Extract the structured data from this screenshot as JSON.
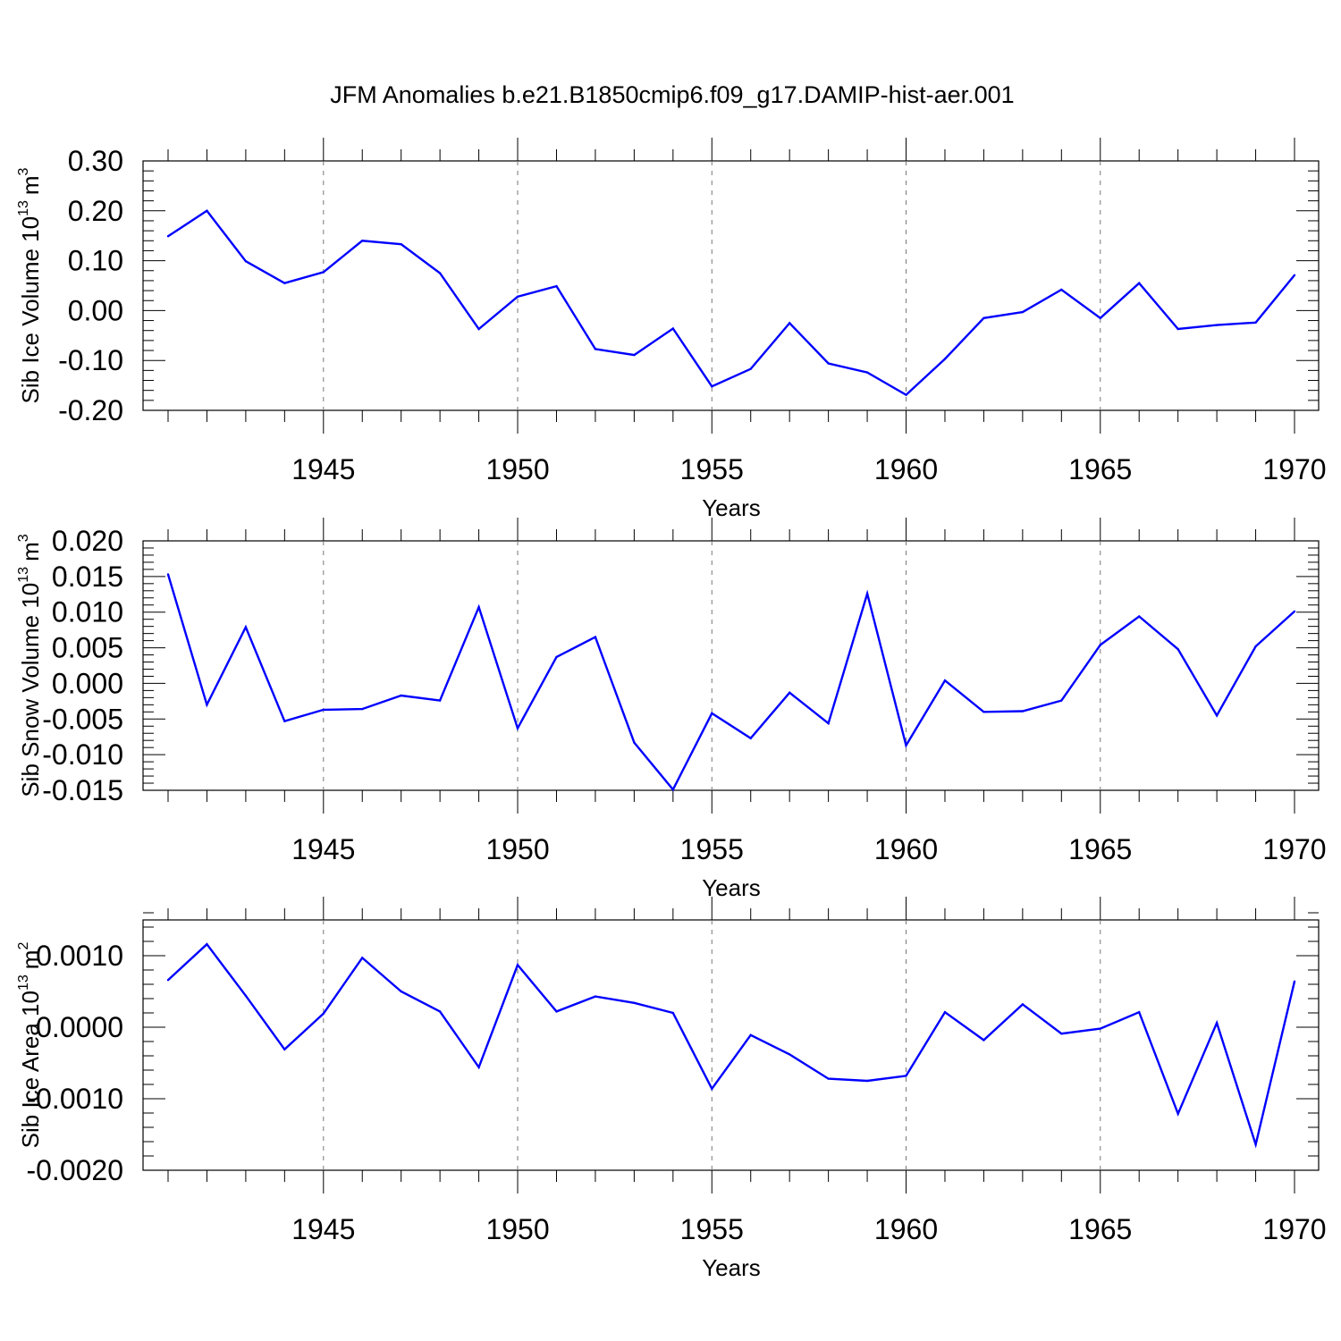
{
  "title": "JFM Anomalies b.e21.B1850cmip6.f09_g17.DAMIP-hist-aer.001",
  "series_color": "#0000ff",
  "chart_data": [
    {
      "type": "line",
      "ylabel": "Sib Ice Volume 10",
      "ylabel_sup": "13",
      "ylabel_unit": "m",
      "ylabel_unit_sup": "3",
      "xlabel": "Years",
      "xlim": [
        1941,
        1970
      ],
      "ylim": [
        -0.2,
        0.3
      ],
      "yticks": [
        -0.2,
        -0.1,
        0.0,
        0.1,
        0.2,
        0.3
      ],
      "ytick_labels": [
        "-0.20",
        "-0.10",
        "0.00",
        "0.10",
        "0.20",
        "0.30"
      ],
      "xticks": [
        1945,
        1950,
        1955,
        1960,
        1965,
        1970
      ],
      "xtick_labels": [
        "1945",
        "1950",
        "1955",
        "1960",
        "1965",
        "1970"
      ],
      "x": [
        1941,
        1942,
        1943,
        1944,
        1945,
        1946,
        1947,
        1948,
        1949,
        1950,
        1951,
        1952,
        1953,
        1954,
        1955,
        1956,
        1957,
        1958,
        1959,
        1960,
        1961,
        1962,
        1963,
        1964,
        1965,
        1966,
        1967,
        1968,
        1969,
        1970
      ],
      "values": [
        0.149,
        0.2,
        0.099,
        0.055,
        0.077,
        0.14,
        0.133,
        0.075,
        -0.037,
        0.028,
        0.049,
        -0.077,
        -0.089,
        -0.036,
        -0.152,
        -0.117,
        -0.025,
        -0.106,
        -0.124,
        -0.169,
        -0.097,
        -0.015,
        -0.003,
        0.042,
        -0.015,
        0.055,
        -0.037,
        -0.029,
        -0.024,
        0.071
      ]
    },
    {
      "type": "line",
      "ylabel": "Sib Snow Volume 10",
      "ylabel_sup": "13",
      "ylabel_unit": "m",
      "ylabel_unit_sup": "3",
      "xlabel": "Years",
      "xlim": [
        1941,
        1970
      ],
      "ylim": [
        -0.015,
        0.02
      ],
      "yticks": [
        -0.015,
        -0.01,
        -0.005,
        0.0,
        0.005,
        0.01,
        0.015,
        0.02
      ],
      "ytick_labels": [
        "-0.015",
        "-0.010",
        "-0.005",
        "0.000",
        "0.005",
        "0.010",
        "0.015",
        "0.020"
      ],
      "xticks": [
        1945,
        1950,
        1955,
        1960,
        1965,
        1970
      ],
      "xtick_labels": [
        "1945",
        "1950",
        "1955",
        "1960",
        "1965",
        "1970"
      ],
      "x": [
        1941,
        1942,
        1943,
        1944,
        1945,
        1946,
        1947,
        1948,
        1949,
        1950,
        1951,
        1952,
        1953,
        1954,
        1955,
        1956,
        1957,
        1958,
        1959,
        1960,
        1961,
        1962,
        1963,
        1964,
        1965,
        1966,
        1967,
        1968,
        1969,
        1970
      ],
      "values": [
        0.0153,
        -0.003,
        0.0079,
        -0.0053,
        -0.0037,
        -0.0036,
        -0.0017,
        -0.0024,
        0.0107,
        -0.0063,
        0.0037,
        0.0065,
        -0.0083,
        -0.0149,
        -0.0042,
        -0.0077,
        -0.0013,
        -0.0056,
        0.0126,
        -0.0087,
        0.0004,
        -0.004,
        -0.0039,
        -0.0024,
        0.0054,
        0.0094,
        0.0048,
        -0.0045,
        0.0052,
        0.0101
      ]
    },
    {
      "type": "line",
      "ylabel": "Sib Ice Area 10",
      "ylabel_sup": "13",
      "ylabel_unit": "m",
      "ylabel_unit_sup": "2",
      "xlabel": "Years",
      "xlim": [
        1941,
        1970
      ],
      "ylim": [
        -0.002,
        0.0015
      ],
      "yticks": [
        -0.002,
        -0.001,
        0.0,
        0.001
      ],
      "ytick_labels": [
        "-0.0020",
        "-0.0010",
        "0.0000",
        "0.0010"
      ],
      "xticks": [
        1945,
        1950,
        1955,
        1960,
        1965,
        1970
      ],
      "xtick_labels": [
        "1945",
        "1950",
        "1955",
        "1960",
        "1965",
        "1970"
      ],
      "x": [
        1941,
        1942,
        1943,
        1944,
        1945,
        1946,
        1947,
        1948,
        1949,
        1950,
        1951,
        1952,
        1953,
        1954,
        1955,
        1956,
        1957,
        1958,
        1959,
        1960,
        1961,
        1962,
        1963,
        1964,
        1965,
        1966,
        1967,
        1968,
        1969,
        1970
      ],
      "values": [
        0.00066,
        0.00116,
        0.00044,
        -0.00031,
        0.00019,
        0.00097,
        0.0005,
        0.00022,
        -0.00056,
        0.00087,
        0.00022,
        0.00043,
        0.00034,
        0.0002,
        -0.00086,
        -0.00011,
        -0.00038,
        -0.00072,
        -0.00075,
        -0.00068,
        0.00021,
        -0.00018,
        0.00032,
        -9e-05,
        -2e-05,
        0.00021,
        -0.00121,
        6e-05,
        -0.00164,
        0.00064
      ]
    }
  ]
}
